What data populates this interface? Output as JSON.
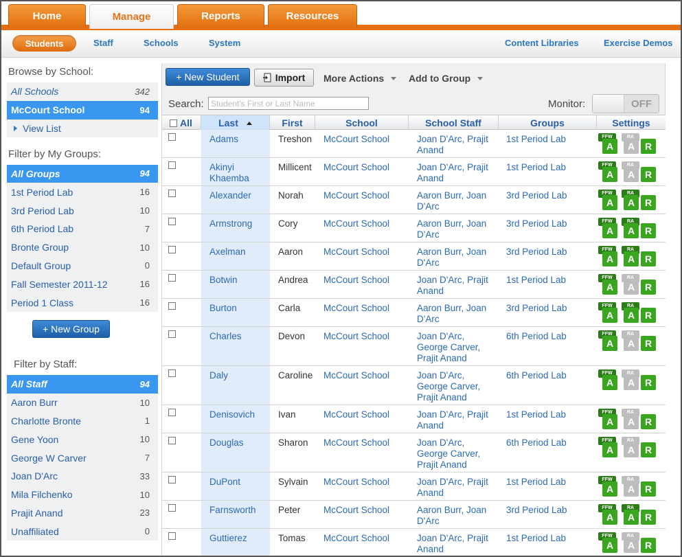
{
  "main_tabs": [
    {
      "label": "Home",
      "active": false
    },
    {
      "label": "Manage",
      "active": true
    },
    {
      "label": "Reports",
      "active": false
    },
    {
      "label": "Resources",
      "active": false
    }
  ],
  "sub_nav": {
    "active": "Students",
    "items": [
      "Staff",
      "Schools",
      "System"
    ],
    "right": [
      "Content Libraries",
      "Exercise Demos"
    ]
  },
  "sidebar": {
    "browse_title": "Browse by School:",
    "schools": [
      {
        "name": "All Schools",
        "count": "342",
        "selected": false,
        "italic": true
      },
      {
        "name": "McCourt School",
        "count": "94",
        "selected": true,
        "italic": false
      }
    ],
    "view_list": "View List",
    "groups_title": "Filter by My Groups:",
    "groups": [
      {
        "name": "All Groups",
        "count": "94",
        "selected": true,
        "italic": true
      },
      {
        "name": "1st Period Lab",
        "count": "16"
      },
      {
        "name": "3rd Period Lab",
        "count": "10"
      },
      {
        "name": "6th Period Lab",
        "count": "7"
      },
      {
        "name": "Bronte Group",
        "count": "10"
      },
      {
        "name": "Default Group",
        "count": "0"
      },
      {
        "name": "Fall Semester 2011-12",
        "count": "16"
      },
      {
        "name": "Period 1 Class",
        "count": "16"
      }
    ],
    "new_group": "+ New Group",
    "staff_title": "Filter by Staff:",
    "staff": [
      {
        "name": "All Staff",
        "count": "94",
        "selected": true,
        "italic": true
      },
      {
        "name": "Aaron Burr",
        "count": "10"
      },
      {
        "name": "Charlotte Bronte",
        "count": "1"
      },
      {
        "name": "Gene Yoon",
        "count": "10"
      },
      {
        "name": "George W Carver",
        "count": "7"
      },
      {
        "name": "Joan D'Arc",
        "count": "33"
      },
      {
        "name": "Mila Filchenko",
        "count": "10"
      },
      {
        "name": "Prajit Anand",
        "count": "23"
      },
      {
        "name": "Unaffiliated",
        "count": "0"
      }
    ]
  },
  "toolbar": {
    "new_student": "+ New Student",
    "import": "Import",
    "more_actions": "More Actions",
    "add_to_group": "Add to Group"
  },
  "search": {
    "label": "Search:",
    "placeholder": "Student's First or Last Name",
    "value": ""
  },
  "monitor": {
    "label": "Monitor:",
    "state": "OFF"
  },
  "table": {
    "columns": {
      "all": "All",
      "last": "Last",
      "first": "First",
      "school": "School",
      "staff": "School Staff",
      "groups": "Groups",
      "settings": "Settings"
    },
    "badge_labels": {
      "ffw": "FFW",
      "ra": "RA",
      "a": "A",
      "r": "R"
    },
    "rows": [
      {
        "last": "Adams",
        "first": "Treshon",
        "school": "McCourt School",
        "staff": "Joan D'Arc, Prajit Anand",
        "group": "1st Period Lab",
        "ra_on": false
      },
      {
        "last": "Akinyi Khaemba",
        "first": "Millicent",
        "school": "McCourt School",
        "staff": "Joan D'Arc, Prajit Anand",
        "group": "1st Period Lab",
        "ra_on": false
      },
      {
        "last": "Alexander",
        "first": "Norah",
        "school": "McCourt School",
        "staff": "Aaron Burr, Joan D'Arc",
        "group": "3rd Period Lab",
        "ra_on": true
      },
      {
        "last": "Armstrong",
        "first": "Cory",
        "school": "McCourt School",
        "staff": "Aaron Burr, Joan D'Arc",
        "group": "3rd Period Lab",
        "ra_on": true
      },
      {
        "last": "Axelman",
        "first": "Aaron",
        "school": "McCourt School",
        "staff": "Aaron Burr, Joan D'Arc",
        "group": "3rd Period Lab",
        "ra_on": true
      },
      {
        "last": "Botwin",
        "first": "Andrea",
        "school": "McCourt School",
        "staff": "Joan D'Arc, Prajit Anand",
        "group": "1st Period Lab",
        "ra_on": false
      },
      {
        "last": "Burton",
        "first": "Carla",
        "school": "McCourt School",
        "staff": "Aaron Burr, Joan D'Arc",
        "group": "3rd Period Lab",
        "ra_on": true
      },
      {
        "last": "Charles",
        "first": "Devon",
        "school": "McCourt School",
        "staff": "Joan D'Arc, George Carver, Prajit Anand",
        "group": "6th Period Lab",
        "ra_on": false
      },
      {
        "last": "Daly",
        "first": "Caroline",
        "school": "McCourt School",
        "staff": "Joan D'Arc, George Carver, Prajit Anand",
        "group": "6th Period Lab",
        "ra_on": false
      },
      {
        "last": "Denisovich",
        "first": "Ivan",
        "school": "McCourt School",
        "staff": "Joan D'Arc, Prajit Anand",
        "group": "1st Period Lab",
        "ra_on": false
      },
      {
        "last": "Douglas",
        "first": "Sharon",
        "school": "McCourt School",
        "staff": "Joan D'Arc, George Carver, Prajit Anand",
        "group": "6th Period Lab",
        "ra_on": false
      },
      {
        "last": "DuPont",
        "first": "Sylvain",
        "school": "McCourt School",
        "staff": "Joan D'Arc, Prajit Anand",
        "group": "1st Period Lab",
        "ra_on": false
      },
      {
        "last": "Farnsworth",
        "first": "Peter",
        "school": "McCourt School",
        "staff": "Aaron Burr, Joan D'Arc",
        "group": "3rd Period Lab",
        "ra_on": true
      },
      {
        "last": "Guttierez",
        "first": "Tomas",
        "school": "McCourt School",
        "staff": "Joan D'Arc, Prajit Anand",
        "group": "1st Period Lab",
        "ra_on": false
      }
    ]
  },
  "colors": {
    "orange": "#e56f12",
    "blue_link": "#2a6ab8",
    "selected_blue": "#3a97f0",
    "badge_green": "#3aa620",
    "badge_grey": "#bdbdbd"
  }
}
